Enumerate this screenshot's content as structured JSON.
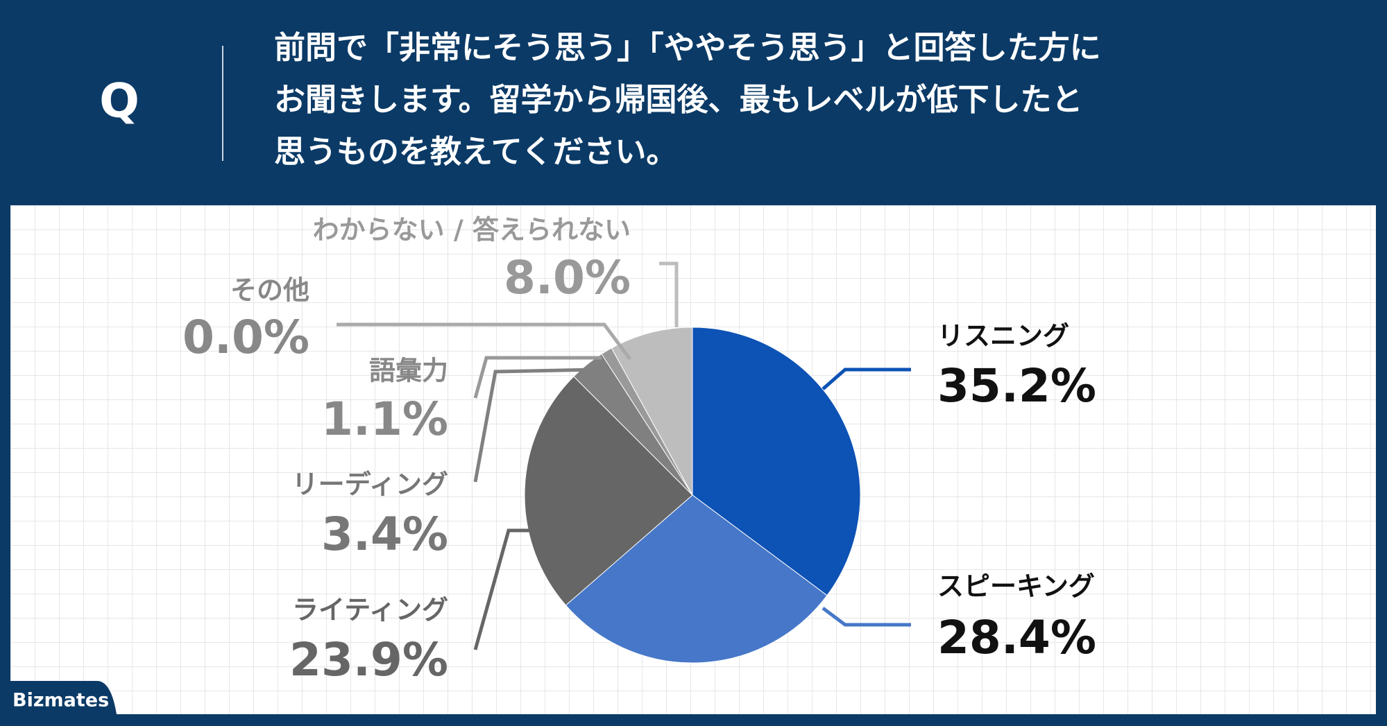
{
  "question_mark": "Q",
  "question": [
    "前問で「非常にそう思う」「ややそう思う」と回答した方に",
    "お聞きします。留学から帰国後、最もレベルが低下したと",
    "思うものを教えてください。"
  ],
  "brand": "Bizmates",
  "chart_data": {
    "type": "pie",
    "categories": [
      "リスニング",
      "スピーキング",
      "ライティング",
      "リーディング",
      "語彙力",
      "その他",
      "わからない / 答えられない"
    ],
    "values": [
      35.2,
      28.4,
      23.9,
      3.4,
      1.1,
      0.0,
      8.0
    ],
    "value_labels": [
      "35.2%",
      "28.4%",
      "23.9%",
      "3.4%",
      "1.1%",
      "0.0%",
      "8.0%"
    ],
    "colors": [
      "#0d52b5",
      "#4677c8",
      "#666666",
      "#808080",
      "#999999",
      "#aaaaaa",
      "#bdbdbd"
    ]
  }
}
